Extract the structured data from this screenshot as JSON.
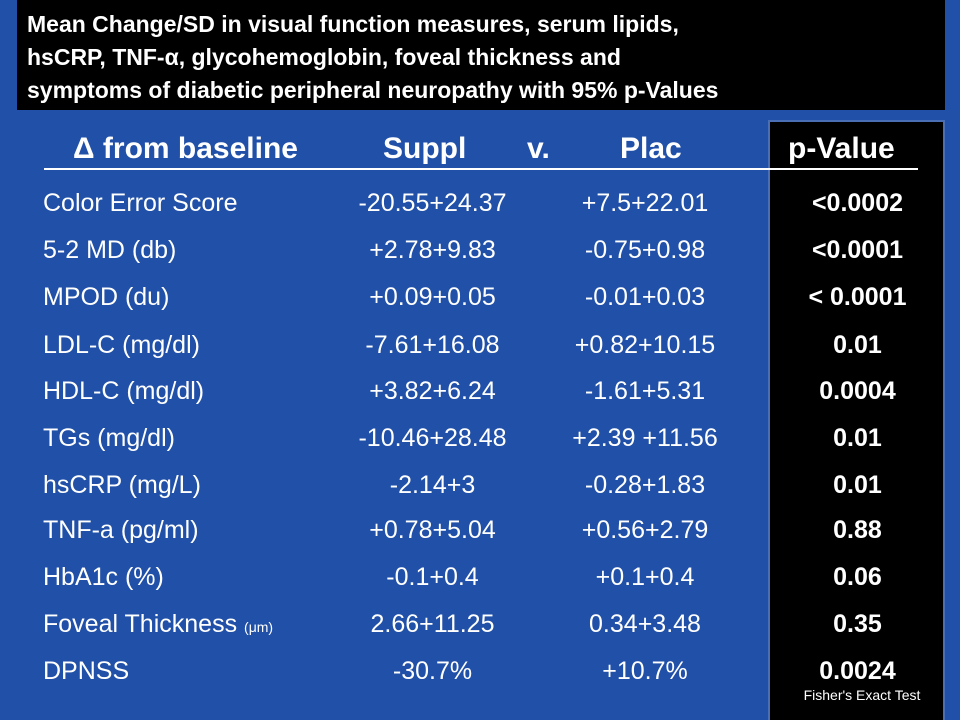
{
  "title": {
    "lines": [
      "Mean Change/SD in visual function measures, serum lipids,",
      "hsCRP, TNF-α, glycohemoglobin, foveal thickness and",
      "symptoms of diabetic peripheral neuropathy with 95% p-Values"
    ]
  },
  "header": {
    "delta": "Δ from baseline",
    "suppl": "Suppl",
    "vs": "v.",
    "plac": "Plac",
    "pvalue": "p-Value"
  },
  "rows": [
    {
      "label": "Color Error Score",
      "label_small": "",
      "suppl": "-20.55+24.37",
      "plac": "+7.5+22.01",
      "p": "<0.0002"
    },
    {
      "label": "5-2 MD (db)",
      "label_small": "",
      "suppl": "+2.78+9.83",
      "plac": "-0.75+0.98",
      "p": "<0.0001"
    },
    {
      "label": "MPOD (du)",
      "label_small": "",
      "suppl": "+0.09+0.05",
      "plac": "-0.01+0.03",
      "p": "< 0.0001"
    },
    {
      "label": "LDL-C (mg/dl)",
      "label_small": "",
      "suppl": "-7.61+16.08",
      "plac": "+0.82+10.15",
      "p": "0.01"
    },
    {
      "label": "HDL-C (mg/dl)",
      "label_small": "",
      "suppl": "+3.82+6.24",
      "plac": "-1.61+5.31",
      "p": "0.0004"
    },
    {
      "label": "TGs (mg/dl)",
      "label_small": "",
      "suppl": "-10.46+28.48",
      "plac": "+2.39 +11.56",
      "p": "0.01"
    },
    {
      "label": "hsCRP (mg/L)",
      "label_small": "",
      "suppl": "-2.14+3",
      "plac": "-0.28+1.83",
      "p": "0.01"
    },
    {
      "label": "TNF-a (pg/ml)",
      "label_small": "",
      "suppl": "+0.78+5.04",
      "plac": "+0.56+2.79",
      "p": "0.88"
    },
    {
      "label": "HbA1c (%)",
      "label_small": "",
      "suppl": "-0.1+0.4",
      "plac": "+0.1+0.4",
      "p": "0.06"
    },
    {
      "label": "Foveal Thickness",
      "label_small": "(μm)",
      "suppl": "2.66+11.25",
      "plac": "0.34+3.48",
      "p": "0.35"
    },
    {
      "label": "DPNSS",
      "label_small": "",
      "suppl": "-30.7%",
      "plac": "+10.7%",
      "p": "0.0024"
    }
  ],
  "footnote": "Fisher's Exact Test"
}
